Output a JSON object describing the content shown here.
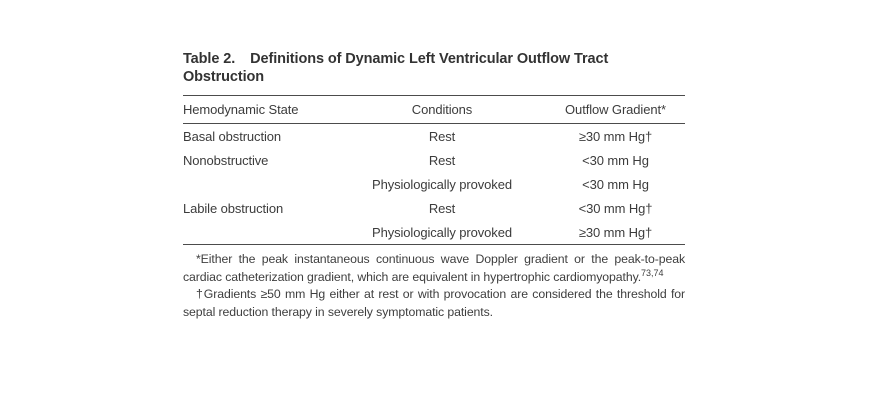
{
  "page": {
    "background_color": "#ffffff",
    "text_color": "#3a3a3a",
    "rule_color": "#4c4c4c"
  },
  "table": {
    "title_label": "Table 2.",
    "title_text": "Definitions of Dynamic Left Ventricular Outflow Tract Obstruction",
    "columns": {
      "state": "Hemodynamic State",
      "condition": "Conditions",
      "gradient": "Outflow Gradient*"
    },
    "rows": [
      {
        "state": "Basal obstruction",
        "condition": "Rest",
        "gradient": "≥30 mm Hg†"
      },
      {
        "state": "Nonobstructive",
        "condition": "Rest",
        "gradient": "<30 mm Hg"
      },
      {
        "state": "",
        "condition": "Physiologically provoked",
        "gradient": "<30 mm Hg"
      },
      {
        "state": "Labile obstruction",
        "condition": "Rest",
        "gradient": "<30 mm Hg†"
      },
      {
        "state": "",
        "condition": "Physiologically provoked",
        "gradient": "≥30 mm Hg†"
      }
    ],
    "footnotes": [
      {
        "text": "*Either the peak instantaneous continuous wave Doppler gradient or the peak-to-peak cardiac catheterization gradient, which are equivalent in hyper­trophic cardiomyopathy.",
        "ref": "73,74"
      },
      {
        "text": "†Gradients ≥50 mm Hg either at rest or with provocation are considered the threshold for septal reduction therapy in severely symptomatic patients.",
        "ref": ""
      }
    ]
  }
}
